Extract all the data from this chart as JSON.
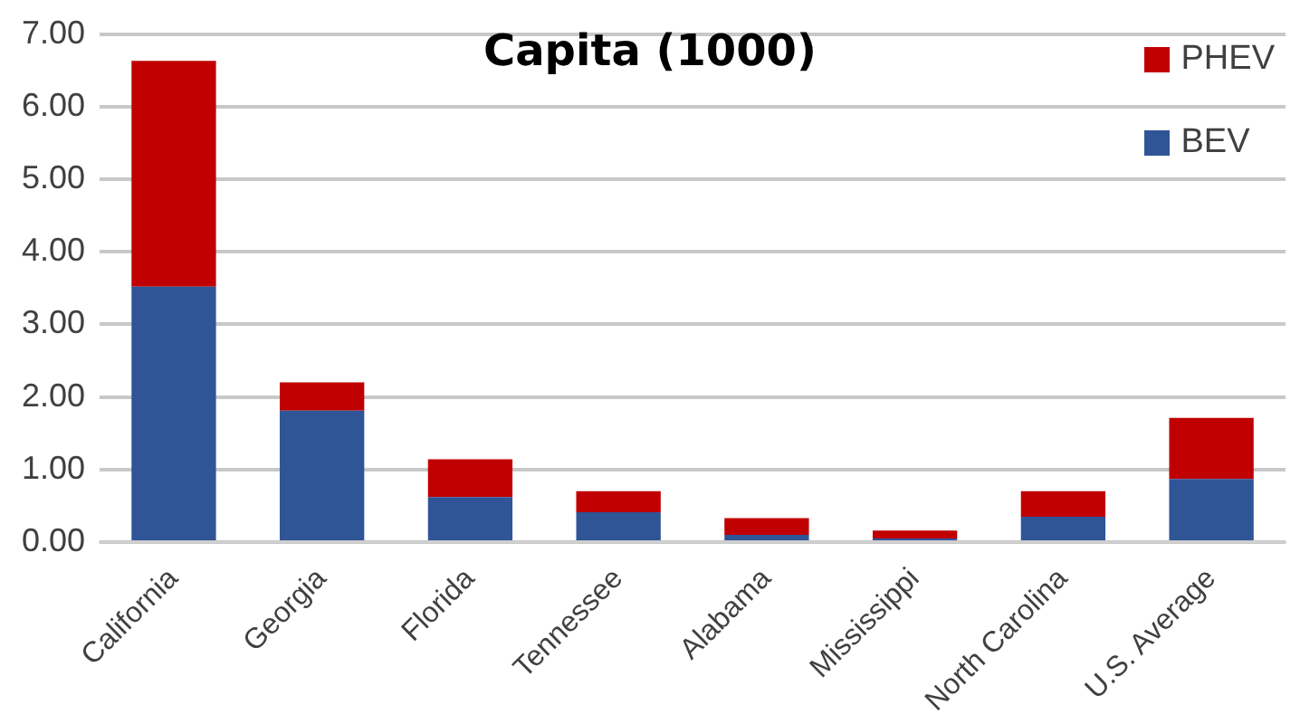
{
  "chart_data": {
    "type": "bar",
    "title": "Capita (1000)",
    "stacked": true,
    "grid": "y",
    "legend": "top right",
    "categories": [
      "California",
      "Georgia",
      "Florida",
      "Tennessee",
      "Alabama",
      "Mississippi",
      "North Carolina",
      "U.S. Average"
    ],
    "series": [
      {
        "name": "BEV",
        "color": "#2f5597",
        "values": [
          3.52,
          1.81,
          0.62,
          0.41,
          0.1,
          0.05,
          0.35,
          0.87
        ]
      },
      {
        "name": "PHEV",
        "color": "#c00000",
        "values": [
          3.11,
          0.39,
          0.52,
          0.29,
          0.23,
          0.11,
          0.35,
          0.84
        ]
      }
    ],
    "ylim": [
      0,
      7
    ],
    "yticks": [
      {
        "value": 0,
        "label": "0.00"
      },
      {
        "value": 1,
        "label": "1.00"
      },
      {
        "value": 2,
        "label": "2.00"
      },
      {
        "value": 3,
        "label": "3.00"
      },
      {
        "value": 4,
        "label": "4.00"
      },
      {
        "value": 5,
        "label": "5.00"
      },
      {
        "value": 6,
        "label": "6.00"
      },
      {
        "value": 7,
        "label": "7.00"
      }
    ]
  }
}
